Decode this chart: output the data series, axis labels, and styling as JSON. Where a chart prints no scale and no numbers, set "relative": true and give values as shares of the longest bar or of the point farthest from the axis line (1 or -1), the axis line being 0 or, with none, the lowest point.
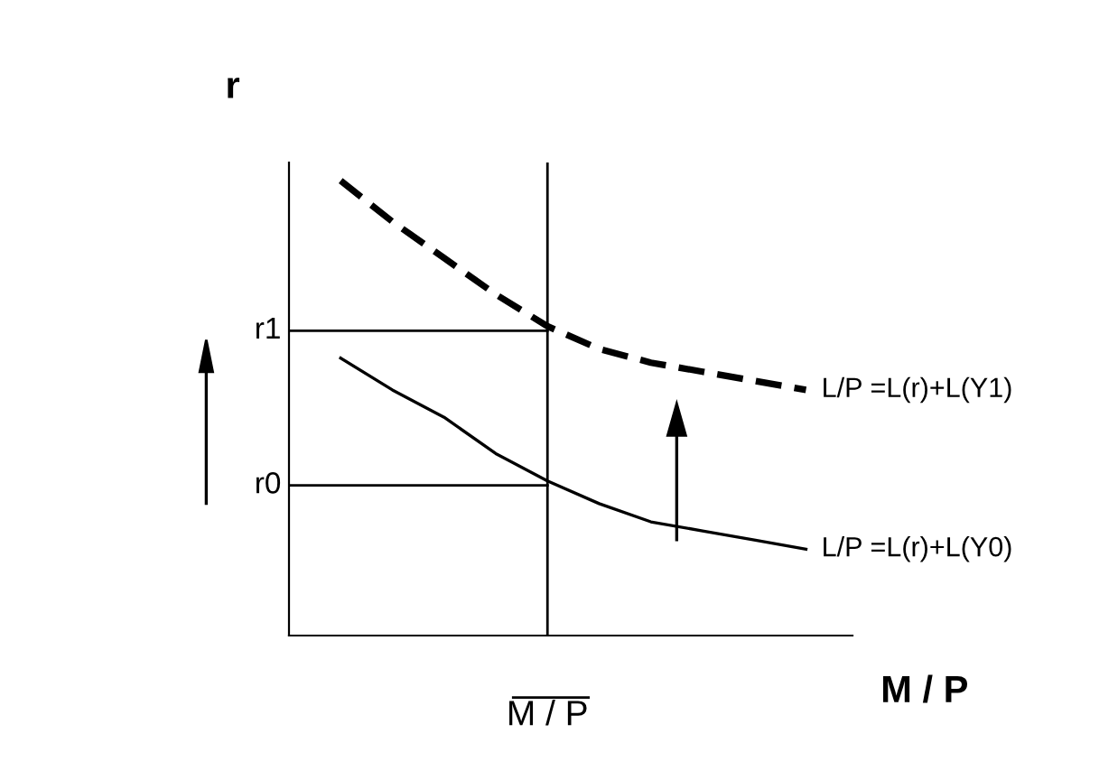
{
  "chart_data": {
    "type": "line",
    "relative": true,
    "ylabel": "r",
    "xlabel": "M / P",
    "categories": [
      null,
      null,
      null,
      null,
      null,
      null,
      null,
      null,
      null,
      null,
      null
    ],
    "annotations": [
      "M / P"
    ],
    "series": [
      {
        "name": "L/P =L(r)+L(Y1)",
        "color": "#000000",
        "line_style": "dashed",
        "values": [
          null,
          1,
          0.91,
          0.83,
          0.75,
          0.68,
          0.63,
          0.6,
          0.58,
          0.56,
          0.54
        ]
      },
      {
        "name": "L/P =L(r)+L(Y0)",
        "color": "#000000",
        "line_style": "solid",
        "values": [
          null,
          0.61,
          0.54,
          0.48,
          0.4,
          0.34,
          0.29,
          0.25,
          0.23,
          0.21,
          0.19
        ]
      }
    ],
    "ref_lines": [
      {
        "axis": "y",
        "value": 0.67,
        "label": "r1",
        "color": "#000000"
      },
      {
        "axis": "y",
        "value": 0.33,
        "label": "r0",
        "color": "#000000"
      }
    ],
    "grid": false,
    "legend": false,
    "marker": "none"
  }
}
